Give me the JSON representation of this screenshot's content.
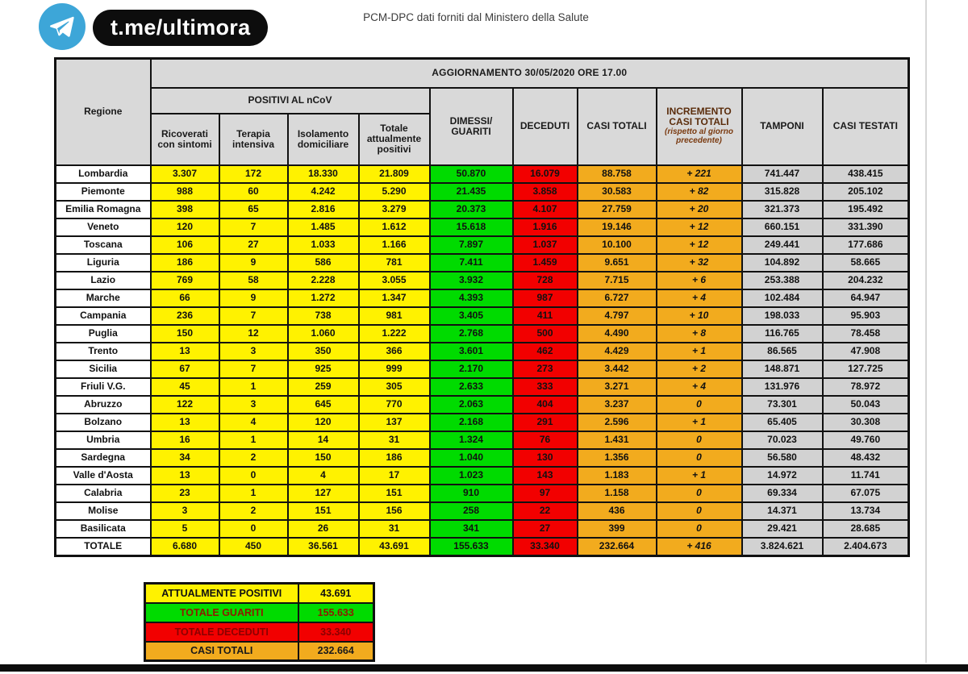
{
  "header": {
    "channel": "t.me/ultimora",
    "source_note": "PCM-DPC dati forniti dal Ministero della Salute"
  },
  "colors": {
    "telegram_blue": "#3da6d8",
    "positivi_yellow": "#fff200",
    "guariti_green": "#00db00",
    "deceduti_red": "#f20000",
    "casi_orange": "#f2ab1e",
    "header_gray": "#d9d9d9",
    "cell_gray": "#d2d2d2"
  },
  "chart_data": {
    "type": "table",
    "title": "AGGIORNAMENTO 30/05/2020 ORE 17.00",
    "region_header": "Regione",
    "group_header": "POSITIVI AL nCoV",
    "increment_subnote": "(rispetto al giorno precedente)",
    "columns": [
      "Regione",
      "Ricoverati con sintomi",
      "Terapia intensiva",
      "Isolamento domiciliare",
      "Totale attualmente positivi",
      "DIMESSI/ GUARITI",
      "DECEDUTI",
      "CASI TOTALI",
      "INCREMENTO CASI TOTALI",
      "TAMPONI",
      "CASI TESTATI"
    ],
    "rows": [
      [
        "Lombardia",
        "3.307",
        "172",
        "18.330",
        "21.809",
        "50.870",
        "16.079",
        "88.758",
        "+ 221",
        "741.447",
        "438.415"
      ],
      [
        "Piemonte",
        "988",
        "60",
        "4.242",
        "5.290",
        "21.435",
        "3.858",
        "30.583",
        "+ 82",
        "315.828",
        "205.102"
      ],
      [
        "Emilia Romagna",
        "398",
        "65",
        "2.816",
        "3.279",
        "20.373",
        "4.107",
        "27.759",
        "+ 20",
        "321.373",
        "195.492"
      ],
      [
        "Veneto",
        "120",
        "7",
        "1.485",
        "1.612",
        "15.618",
        "1.916",
        "19.146",
        "+ 12",
        "660.151",
        "331.390"
      ],
      [
        "Toscana",
        "106",
        "27",
        "1.033",
        "1.166",
        "7.897",
        "1.037",
        "10.100",
        "+ 12",
        "249.441",
        "177.686"
      ],
      [
        "Liguria",
        "186",
        "9",
        "586",
        "781",
        "7.411",
        "1.459",
        "9.651",
        "+ 32",
        "104.892",
        "58.665"
      ],
      [
        "Lazio",
        "769",
        "58",
        "2.228",
        "3.055",
        "3.932",
        "728",
        "7.715",
        "+ 6",
        "253.388",
        "204.232"
      ],
      [
        "Marche",
        "66",
        "9",
        "1.272",
        "1.347",
        "4.393",
        "987",
        "6.727",
        "+ 4",
        "102.484",
        "64.947"
      ],
      [
        "Campania",
        "236",
        "7",
        "738",
        "981",
        "3.405",
        "411",
        "4.797",
        "+ 10",
        "198.033",
        "95.903"
      ],
      [
        "Puglia",
        "150",
        "12",
        "1.060",
        "1.222",
        "2.768",
        "500",
        "4.490",
        "+ 8",
        "116.765",
        "78.458"
      ],
      [
        "Trento",
        "13",
        "3",
        "350",
        "366",
        "3.601",
        "462",
        "4.429",
        "+ 1",
        "86.565",
        "47.908"
      ],
      [
        "Sicilia",
        "67",
        "7",
        "925",
        "999",
        "2.170",
        "273",
        "3.442",
        "+ 2",
        "148.871",
        "127.725"
      ],
      [
        "Friuli V.G.",
        "45",
        "1",
        "259",
        "305",
        "2.633",
        "333",
        "3.271",
        "+ 4",
        "131.976",
        "78.972"
      ],
      [
        "Abruzzo",
        "122",
        "3",
        "645",
        "770",
        "2.063",
        "404",
        "3.237",
        "0",
        "73.301",
        "50.043"
      ],
      [
        "Bolzano",
        "13",
        "4",
        "120",
        "137",
        "2.168",
        "291",
        "2.596",
        "+ 1",
        "65.405",
        "30.308"
      ],
      [
        "Umbria",
        "16",
        "1",
        "14",
        "31",
        "1.324",
        "76",
        "1.431",
        "0",
        "70.023",
        "49.760"
      ],
      [
        "Sardegna",
        "34",
        "2",
        "150",
        "186",
        "1.040",
        "130",
        "1.356",
        "0",
        "56.580",
        "48.432"
      ],
      [
        "Valle d'Aosta",
        "13",
        "0",
        "4",
        "17",
        "1.023",
        "143",
        "1.183",
        "+ 1",
        "14.972",
        "11.741"
      ],
      [
        "Calabria",
        "23",
        "1",
        "127",
        "151",
        "910",
        "97",
        "1.158",
        "0",
        "69.334",
        "67.075"
      ],
      [
        "Molise",
        "3",
        "2",
        "151",
        "156",
        "258",
        "22",
        "436",
        "0",
        "14.371",
        "13.734"
      ],
      [
        "Basilicata",
        "5",
        "0",
        "26",
        "31",
        "341",
        "27",
        "399",
        "0",
        "29.421",
        "28.685"
      ]
    ],
    "total_row": [
      "TOTALE",
      "6.680",
      "450",
      "36.561",
      "43.691",
      "155.633",
      "33.340",
      "232.664",
      "+ 416",
      "3.824.621",
      "2.404.673"
    ]
  },
  "summary": {
    "rows": [
      {
        "label": "ATTUALMENTE POSITIVI",
        "value": "43.691",
        "color": "yellow"
      },
      {
        "label": "TOTALE GUARITI",
        "value": "155.633",
        "color": "green"
      },
      {
        "label": "TOTALE DECEDUTI",
        "value": "33.340",
        "color": "red"
      },
      {
        "label": "CASI TOTALI",
        "value": "232.664",
        "color": "orange"
      }
    ]
  }
}
